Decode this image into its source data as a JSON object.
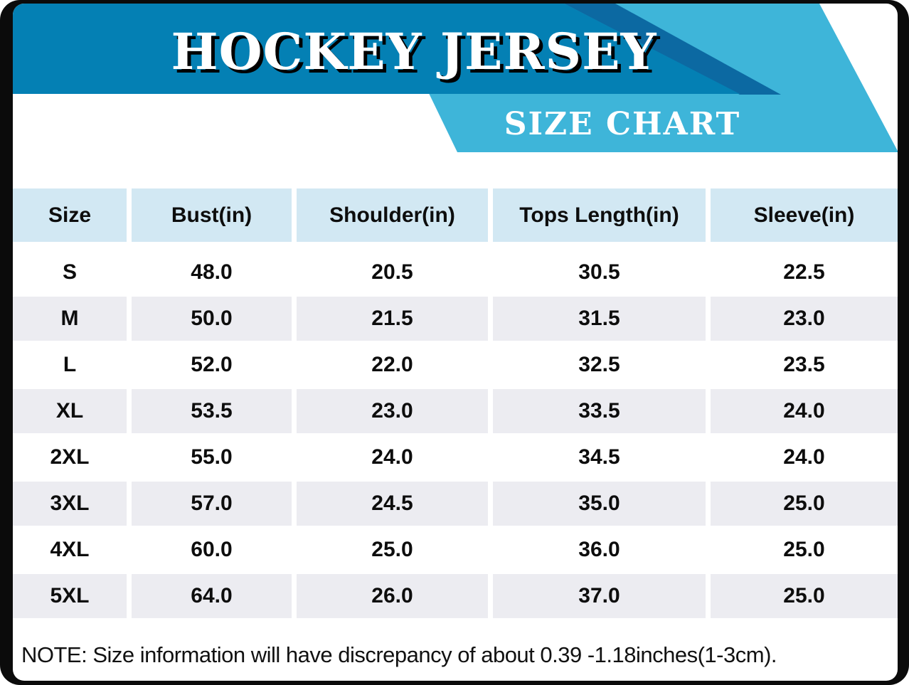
{
  "banner": {
    "title": "HOCKEY JERSEY",
    "subtitle": "SIZE CHART"
  },
  "table": {
    "columns": [
      "Size",
      "Bust(in)",
      "Shoulder(in)",
      "Tops Length(in)",
      "Sleeve(in)"
    ],
    "rows": [
      {
        "size": "S",
        "values": [
          "48.0",
          "20.5",
          "30.5",
          "22.5"
        ]
      },
      {
        "size": "M",
        "values": [
          "50.0",
          "21.5",
          "31.5",
          "23.0"
        ]
      },
      {
        "size": "L",
        "values": [
          "52.0",
          "22.0",
          "32.5",
          "23.5"
        ]
      },
      {
        "size": "XL",
        "values": [
          "53.5",
          "23.0",
          "33.5",
          "24.0"
        ]
      },
      {
        "size": "2XL",
        "values": [
          "55.0",
          "24.0",
          "34.5",
          "24.0"
        ]
      },
      {
        "size": "3XL",
        "values": [
          "57.0",
          "24.5",
          "35.0",
          "25.0"
        ]
      },
      {
        "size": "4XL",
        "values": [
          "60.0",
          "25.0",
          "36.0",
          "25.0"
        ]
      },
      {
        "size": "5XL",
        "values": [
          "64.0",
          "26.0",
          "37.0",
          "25.0"
        ]
      }
    ]
  },
  "note": {
    "text": "NOTE: Size information will have discrepancy of about 0.39 -1.18inches(1-3cm)."
  },
  "colors": {
    "frame_black": "#0b0b0b",
    "banner_main_blue": "#0480b4",
    "banner_dark_blue": "#0c69a2",
    "banner_light_blue": "#3eb5d9",
    "title_text": "#ffffff",
    "title_shadow": "#000000",
    "header_cell_bg": "#d2e8f3",
    "row_alt_bg": "#ececf1",
    "table_text": "#0d0d0d"
  }
}
